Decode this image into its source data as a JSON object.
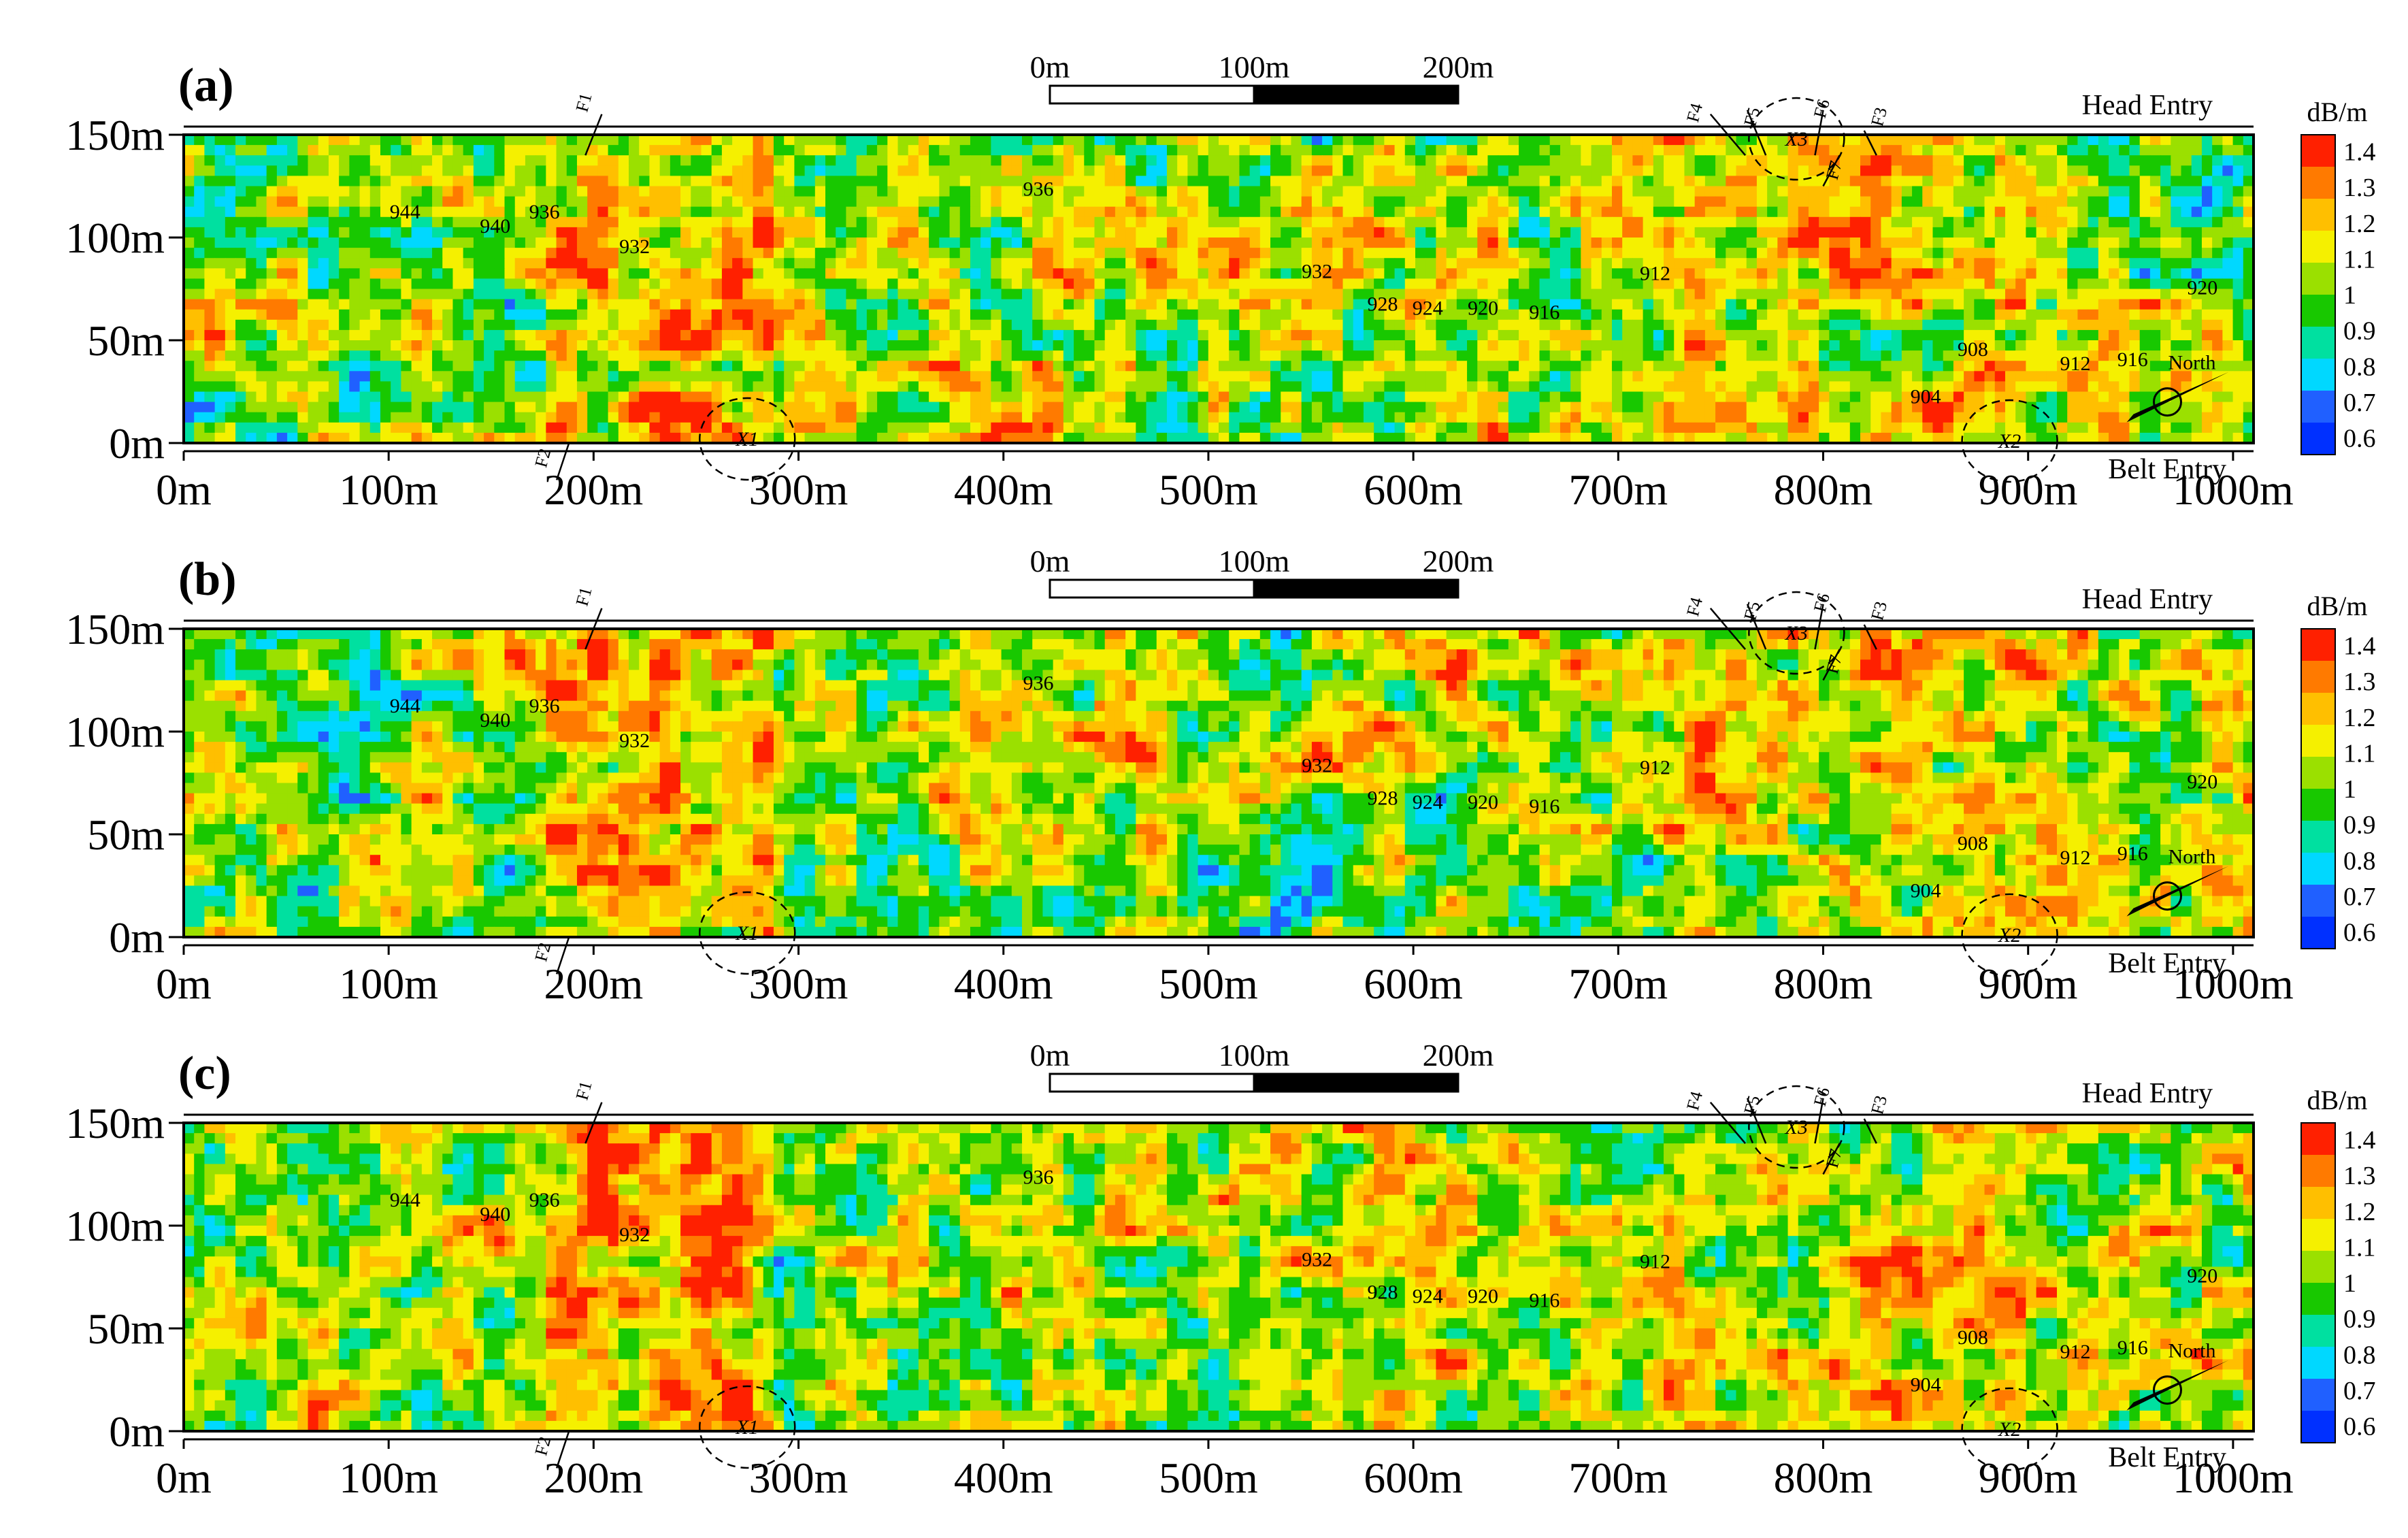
{
  "chart_data": {
    "type": "heatmap",
    "units": "dB/m",
    "colorbar": {
      "unit": "dB/m",
      "ticks": [
        "1.4",
        "1.3",
        "1.2",
        "1.1",
        "1",
        "0.9",
        "0.8",
        "0.7",
        "0.6"
      ],
      "colors": [
        "#ff2000",
        "#ff7a00",
        "#ffbf00",
        "#f5f000",
        "#9be000",
        "#18c800",
        "#00e0a0",
        "#00d8ff",
        "#2060ff",
        "#0030ff"
      ]
    },
    "x_ticks": [
      "0m",
      "100m",
      "200m",
      "300m",
      "400m",
      "500m",
      "600m",
      "700m",
      "800m",
      "900m",
      "1000m"
    ],
    "y_ticks": [
      "150m",
      "100m",
      "50m",
      "0m"
    ],
    "xlim": [
      0,
      1010
    ],
    "ylim": [
      0,
      150
    ],
    "scale_bar": [
      "0m",
      "100m",
      "200m"
    ],
    "entries": {
      "top": "Head Entry",
      "bottom": "Belt Entry"
    },
    "north_label": "North",
    "contour_labels": [
      {
        "text": "944",
        "x": 108,
        "y": 112
      },
      {
        "text": "940",
        "x": 152,
        "y": 105
      },
      {
        "text": "936",
        "x": 176,
        "y": 112
      },
      {
        "text": "932",
        "x": 220,
        "y": 95
      },
      {
        "text": "936",
        "x": 417,
        "y": 123
      },
      {
        "text": "932",
        "x": 553,
        "y": 83
      },
      {
        "text": "928",
        "x": 585,
        "y": 67
      },
      {
        "text": "924",
        "x": 607,
        "y": 65
      },
      {
        "text": "920",
        "x": 634,
        "y": 65
      },
      {
        "text": "916",
        "x": 664,
        "y": 63
      },
      {
        "text": "912",
        "x": 718,
        "y": 82
      },
      {
        "text": "908",
        "x": 873,
        "y": 45
      },
      {
        "text": "904",
        "x": 850,
        "y": 22
      },
      {
        "text": "912",
        "x": 923,
        "y": 38
      },
      {
        "text": "916",
        "x": 951,
        "y": 40
      },
      {
        "text": "920",
        "x": 985,
        "y": 75
      }
    ],
    "faults": [
      "F1",
      "F2",
      "F3",
      "F4",
      "F5",
      "F6",
      "F7"
    ],
    "collapse_columns": [
      {
        "name": "X1",
        "x": 275,
        "y": 2
      },
      {
        "name": "X2",
        "x": 891,
        "y": 1
      },
      {
        "name": "X3",
        "x": 787,
        "y": 148
      }
    ],
    "panels": [
      {
        "label": "(a)",
        "seed": 11
      },
      {
        "label": "(b)",
        "seed": 37
      },
      {
        "label": "(c)",
        "seed": 73
      }
    ]
  }
}
